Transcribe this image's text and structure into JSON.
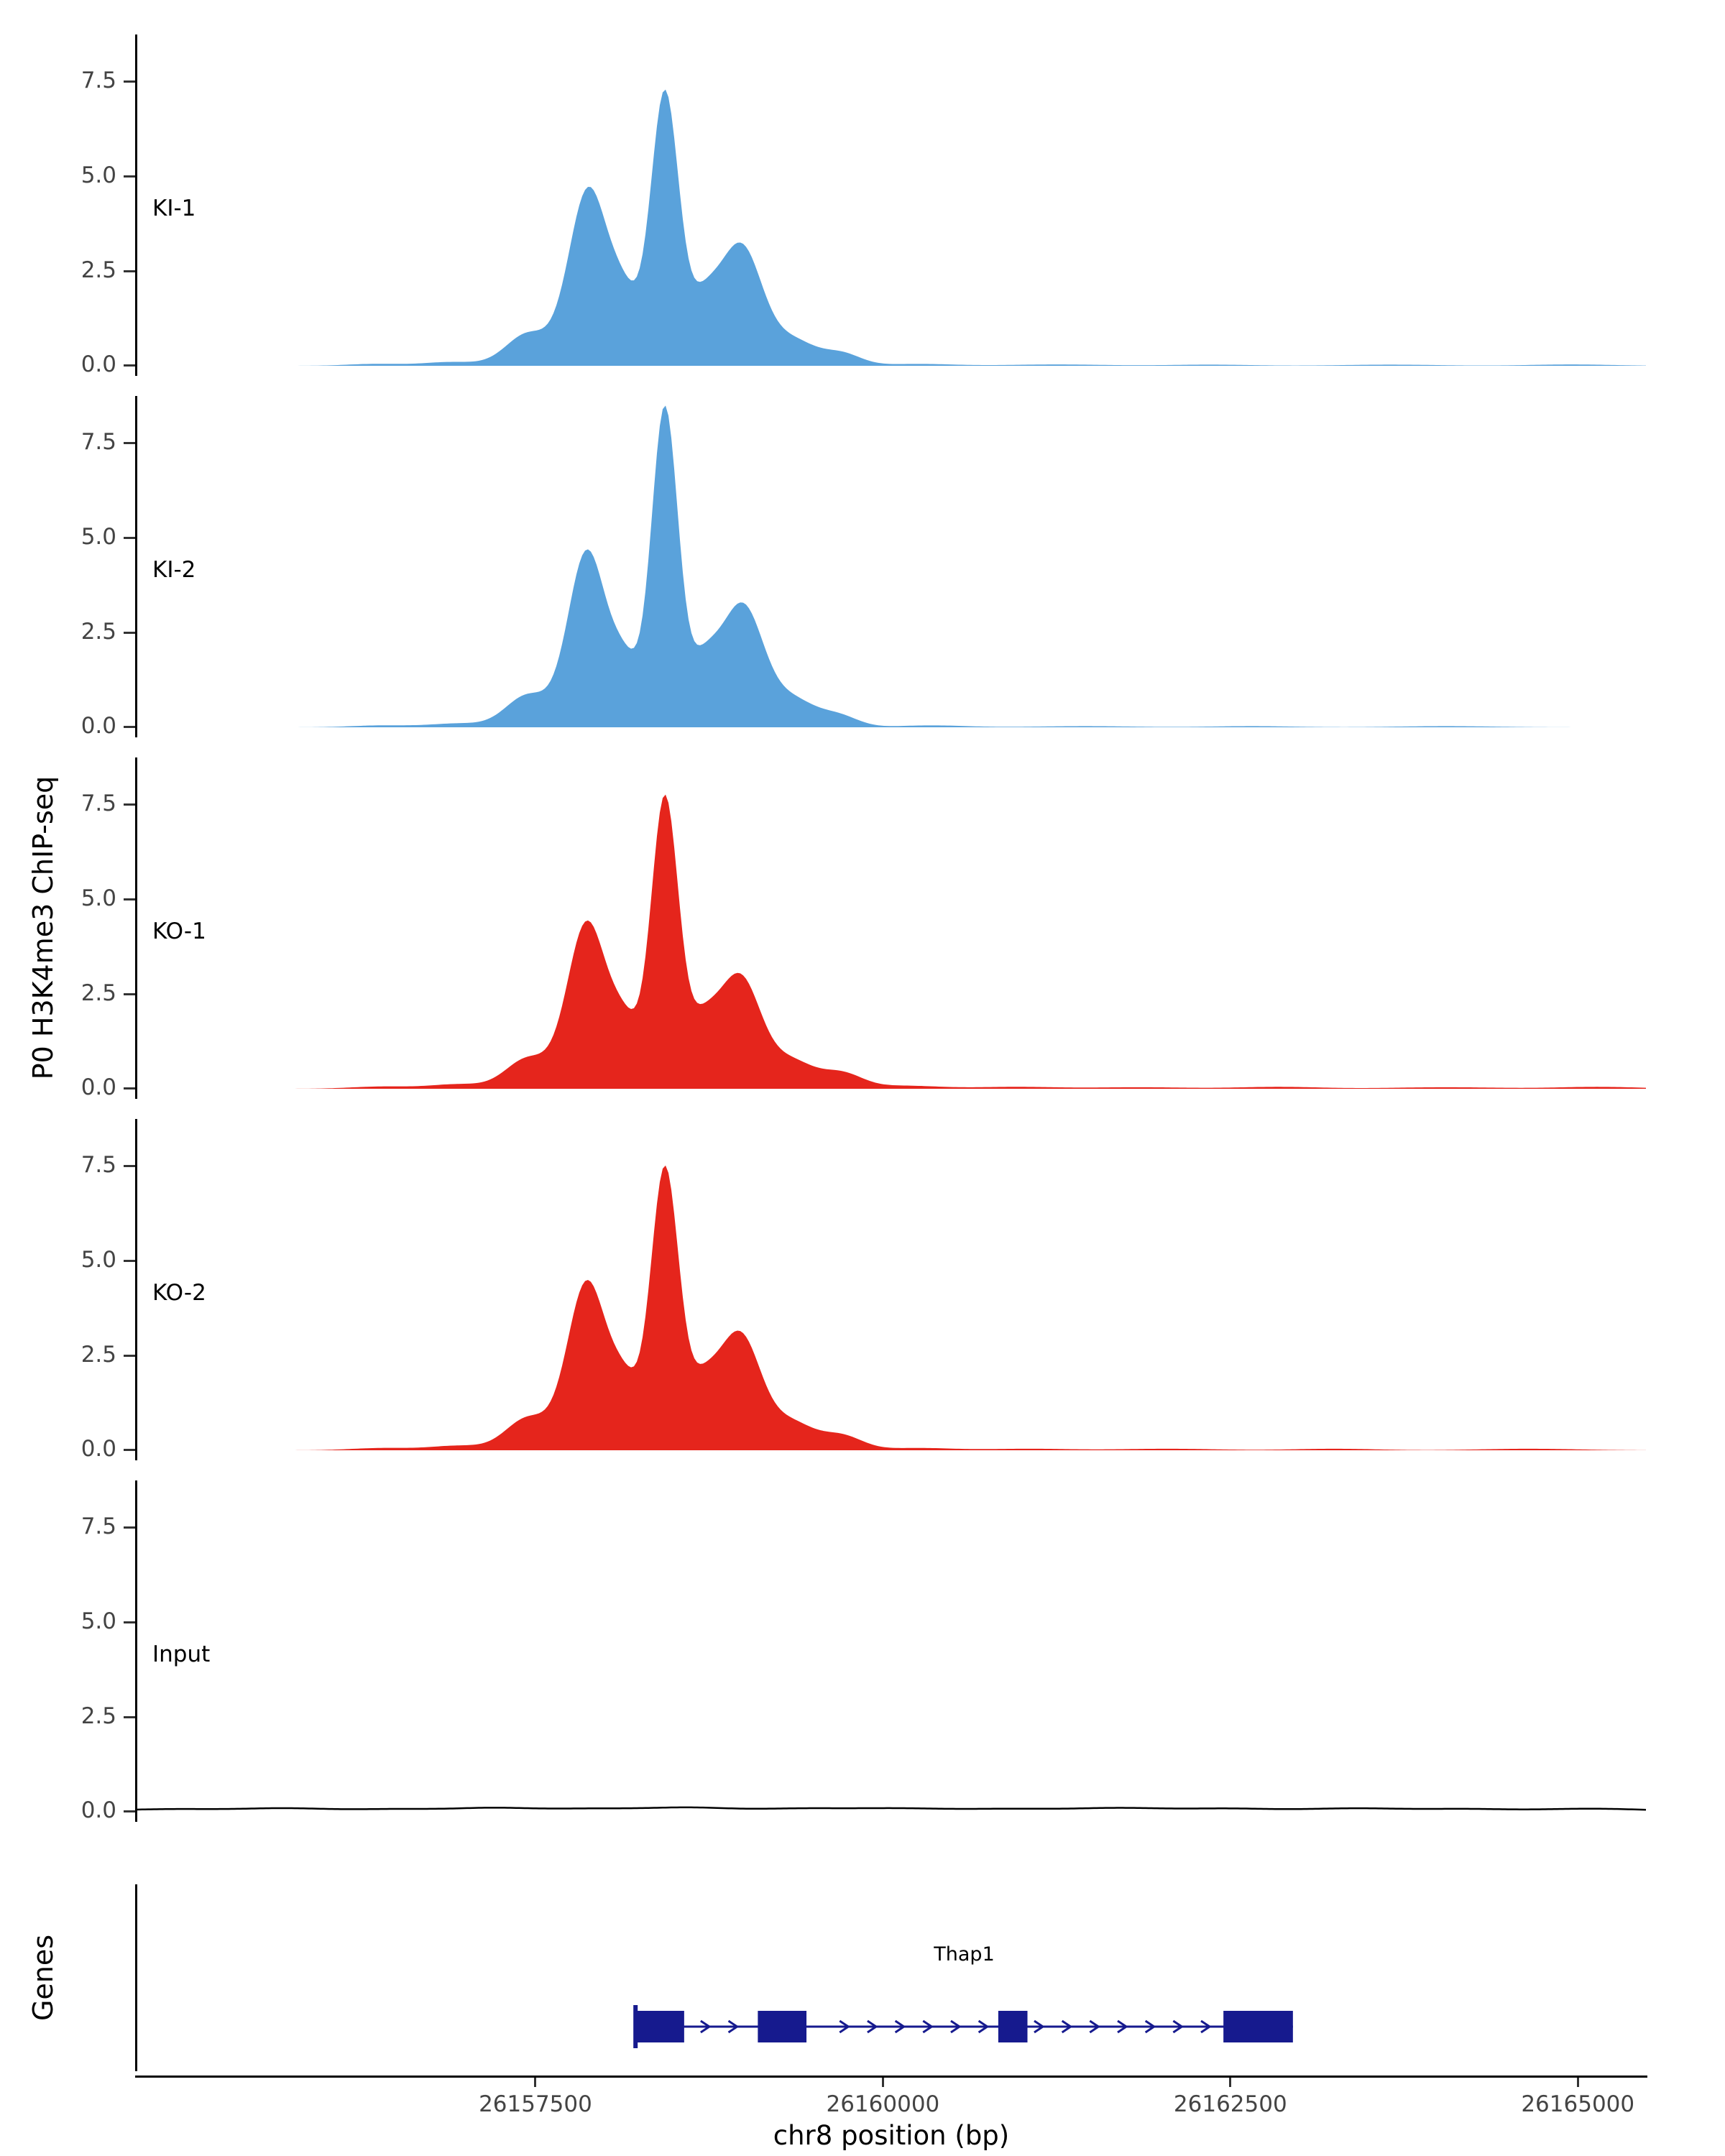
{
  "chart_data": {
    "type": "area",
    "xlabel": "chr8 position (bp)",
    "ylabel": "P0 H3K4me3 ChIP-seq",
    "x_domain": [
      26154630,
      26165490
    ],
    "y_domain": [
      0,
      8.7
    ],
    "x_ticks": [
      "26157500",
      "26160000",
      "26162500",
      "26165000"
    ],
    "x_tick_values": [
      26157500,
      26160000,
      26162500,
      26165000
    ],
    "y_ticks": [
      "7.5",
      "5.0",
      "2.5",
      "0.0"
    ],
    "y_tick_values": [
      7.5,
      5.0,
      2.5,
      0.0
    ],
    "peaks_format": "[center_bp, height, sigma_bp]",
    "tracks": [
      {
        "name": "KI-1",
        "color": "#5AA2DB",
        "render": "area",
        "baseline": 0,
        "peaks": [
          [
            26156350,
            0.05,
            200
          ],
          [
            26156900,
            0.1,
            200
          ],
          [
            26157450,
            0.85,
            160
          ],
          [
            26157880,
            4.62,
            140
          ],
          [
            26158150,
            1.55,
            110
          ],
          [
            26158430,
            7.1,
            100
          ],
          [
            26158700,
            1.5,
            120
          ],
          [
            26158980,
            3.1,
            150
          ],
          [
            26159350,
            0.65,
            160
          ],
          [
            26159700,
            0.32,
            140
          ],
          [
            26160250,
            0.05,
            250
          ],
          [
            26161250,
            0.035,
            350
          ],
          [
            26162350,
            0.03,
            300
          ],
          [
            26163650,
            0.03,
            350
          ],
          [
            26164950,
            0.035,
            300
          ]
        ]
      },
      {
        "name": "KI-2",
        "color": "#5AA2DB",
        "render": "area",
        "baseline": 0,
        "peaks": [
          [
            26156400,
            0.05,
            220
          ],
          [
            26156950,
            0.1,
            200
          ],
          [
            26157450,
            0.85,
            160
          ],
          [
            26157870,
            4.6,
            135
          ],
          [
            26158150,
            1.55,
            110
          ],
          [
            26158430,
            8.3,
            95
          ],
          [
            26158700,
            1.55,
            120
          ],
          [
            26158990,
            3.15,
            150
          ],
          [
            26159350,
            0.7,
            160
          ],
          [
            26159680,
            0.3,
            140
          ],
          [
            26160350,
            0.05,
            250
          ],
          [
            26161450,
            0.03,
            350
          ],
          [
            26162650,
            0.03,
            300
          ],
          [
            26164050,
            0.03,
            350
          ]
        ]
      },
      {
        "name": "KO-1",
        "color": "#E5251C",
        "render": "area",
        "baseline": 0,
        "peaks": [
          [
            26156400,
            0.06,
            220
          ],
          [
            26156950,
            0.12,
            200
          ],
          [
            26157450,
            0.8,
            160
          ],
          [
            26157870,
            4.35,
            140
          ],
          [
            26158150,
            1.5,
            110
          ],
          [
            26158430,
            7.55,
            98
          ],
          [
            26158690,
            1.5,
            120
          ],
          [
            26158970,
            2.9,
            150
          ],
          [
            26159340,
            0.7,
            160
          ],
          [
            26159700,
            0.4,
            150
          ],
          [
            26160150,
            0.08,
            250
          ],
          [
            26160950,
            0.05,
            300
          ],
          [
            26161850,
            0.04,
            350
          ],
          [
            26162850,
            0.05,
            300
          ],
          [
            26164050,
            0.04,
            400
          ],
          [
            26165150,
            0.05,
            300
          ]
        ]
      },
      {
        "name": "KO-2",
        "color": "#E5251C",
        "render": "area",
        "baseline": 0,
        "peaks": [
          [
            26156400,
            0.06,
            220
          ],
          [
            26156950,
            0.12,
            200
          ],
          [
            26157450,
            0.85,
            160
          ],
          [
            26157870,
            4.4,
            140
          ],
          [
            26158150,
            1.55,
            110
          ],
          [
            26158430,
            7.3,
            100
          ],
          [
            26158690,
            1.5,
            120
          ],
          [
            26158970,
            3.0,
            150
          ],
          [
            26159340,
            0.7,
            160
          ],
          [
            26159700,
            0.38,
            150
          ],
          [
            26160250,
            0.06,
            250
          ],
          [
            26161050,
            0.04,
            300
          ],
          [
            26162050,
            0.04,
            350
          ],
          [
            26163250,
            0.04,
            300
          ],
          [
            26164650,
            0.04,
            350
          ]
        ]
      },
      {
        "name": "Input",
        "color": "#000000",
        "render": "line",
        "baseline": 0.02,
        "peaks": [
          [
            26154900,
            0.05,
            350
          ],
          [
            26155700,
            0.07,
            300
          ],
          [
            26156500,
            0.05,
            300
          ],
          [
            26157200,
            0.08,
            280
          ],
          [
            26157900,
            0.06,
            300
          ],
          [
            26158600,
            0.09,
            300
          ],
          [
            26159400,
            0.06,
            300
          ],
          [
            26160100,
            0.07,
            350
          ],
          [
            26160900,
            0.05,
            300
          ],
          [
            26161700,
            0.08,
            350
          ],
          [
            26162500,
            0.06,
            300
          ],
          [
            26163400,
            0.07,
            350
          ],
          [
            26164200,
            0.05,
            300
          ],
          [
            26165100,
            0.06,
            350
          ]
        ]
      }
    ],
    "gene_track": {
      "label": "Genes",
      "gene": {
        "name": "Thap1",
        "strand": "+",
        "start": 26158220,
        "end": 26162950,
        "exons": [
          [
            26158230,
            26158570
          ],
          [
            26159100,
            26159450
          ],
          [
            26160830,
            26161040
          ],
          [
            26162450,
            26162950
          ]
        ],
        "color": "#161A8E"
      }
    }
  }
}
